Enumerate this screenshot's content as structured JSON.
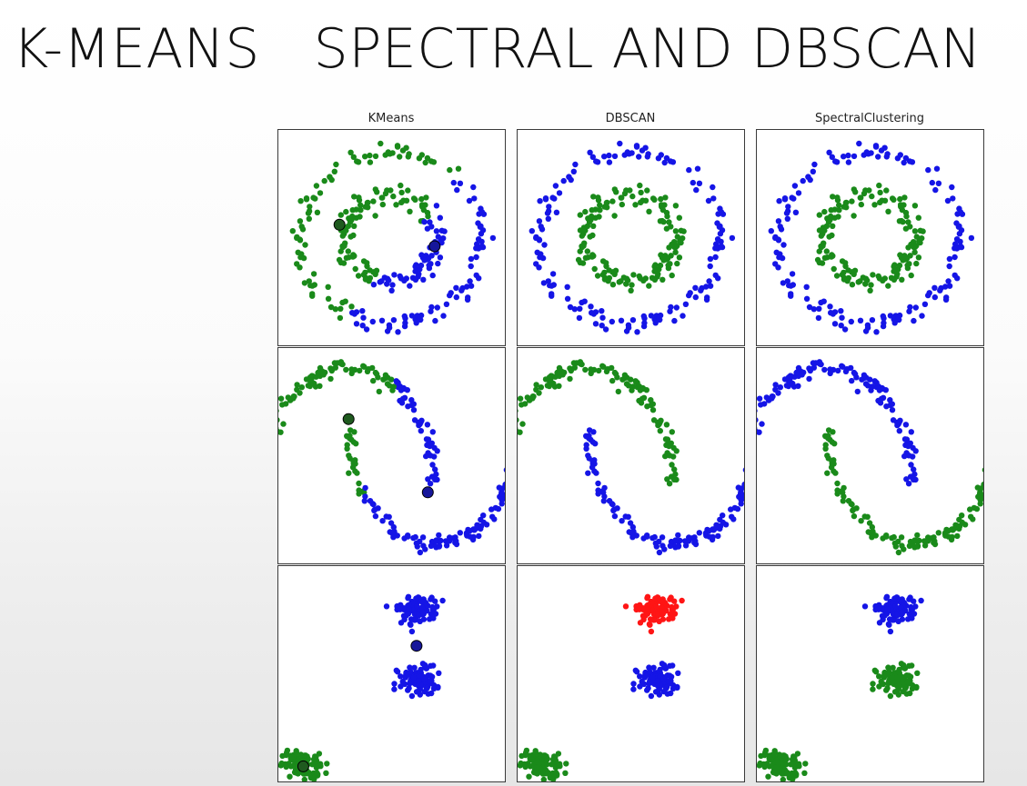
{
  "slide": {
    "title": "K-MEANS   SPECTRAL AND DBSCAN"
  },
  "colors": {
    "green": "#1a8a1a",
    "blue": "#1515e6",
    "red": "#ff1515",
    "center_green": "#1f5a1f",
    "center_blue": "#16169a"
  },
  "chart_data": {
    "type": "scatter",
    "columns": [
      "KMeans",
      "DBSCAN",
      "SpectralClustering"
    ],
    "datasets": [
      "noisy_circles",
      "noisy_moons",
      "blobs"
    ],
    "xlim": [
      -2.5,
      2.5
    ],
    "ylim": [
      -2.5,
      2.5
    ],
    "grid": false,
    "ticks": false,
    "points_per_dataset": 300,
    "noisy_circles": {
      "outer_ring_radius": 2.0,
      "inner_ring_radius": 1.0,
      "noise": 0.08,
      "kmeans_split_angle_deg": 55,
      "kmeans_centers": [
        [
          -1.15,
          0.3
        ],
        [
          0.95,
          -0.2
        ]
      ],
      "labels": {
        "KMeans": "left side green, right side blue (split on angle)",
        "DBSCAN": {
          "outer": "blue",
          "inner": "green"
        },
        "SpectralClustering": {
          "outer": "blue",
          "inner": "green"
        }
      }
    },
    "noisy_moons": {
      "upper_moon_color": {
        "KMeans": "green (x < ~0)",
        "DBSCAN": "green",
        "SpectralClustering": "blue"
      },
      "lower_moon_color": {
        "KMeans": "blue (x > ~0)",
        "DBSCAN": "blue",
        "SpectralClustering": "green"
      },
      "kmeans_centers": [
        [
          -0.95,
          0.85
        ],
        [
          0.8,
          -0.85
        ]
      ]
    },
    "blobs": {
      "centers": [
        [
          0.55,
          1.5
        ],
        [
          0.55,
          -0.15
        ],
        [
          -1.95,
          -2.15
        ]
      ],
      "std": 0.22,
      "colors": {
        "KMeans": [
          "blue",
          "blue",
          "green"
        ],
        "DBSCAN": [
          "red",
          "blue",
          "green"
        ],
        "SpectralClustering": [
          "blue",
          "green",
          "green"
        ]
      },
      "kmeans_centers": [
        [
          0.55,
          0.65
        ],
        [
          -1.95,
          -2.15
        ]
      ]
    }
  }
}
